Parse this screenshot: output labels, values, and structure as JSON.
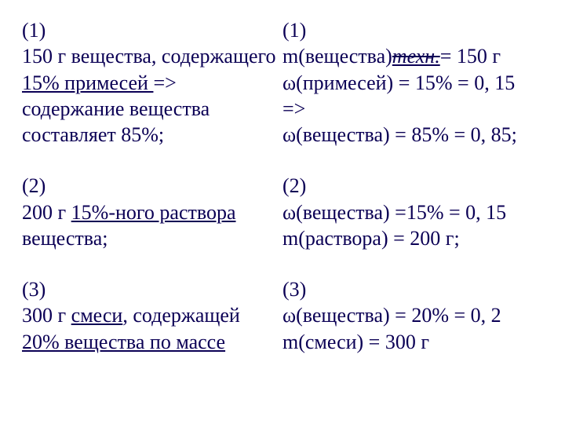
{
  "left": {
    "b1": {
      "label": "(1)",
      "l1a": "150 г вещества, содержащего ",
      "l1u": "15% примесей ",
      "l1b": "=> содержание вещества составляет 85%;"
    },
    "b2": {
      "label": "(2)",
      "l2a": "200 г ",
      "l2u": "15%-ного раствора",
      "l2b": " вещества;"
    },
    "b3": {
      "label": "(3)",
      "l3a": "300 г ",
      "l3u1": "смеси",
      "l3b": ", содержащей ",
      "l3u2": "20% вещества по массе"
    }
  },
  "right": {
    "b1": {
      "label": "(1)",
      "l1a": "m(вещества)",
      "l1sub": "техн.",
      "l1b": "= 150 г",
      "l2": "ω(примесей) = 15% = 0, 15",
      "l3": "=>",
      "l4": "ω(вещества) = 85% = 0, 85;"
    },
    "b2": {
      "label": "(2)",
      "l1": "ω(вещества) =15% = 0, 15",
      "l2": "m(раствора) = 200 г;"
    },
    "b3": {
      "label": "(3)",
      "l1": "ω(вещества) = 20% = 0, 2",
      "l2": "m(смеси) = 300 г"
    }
  }
}
